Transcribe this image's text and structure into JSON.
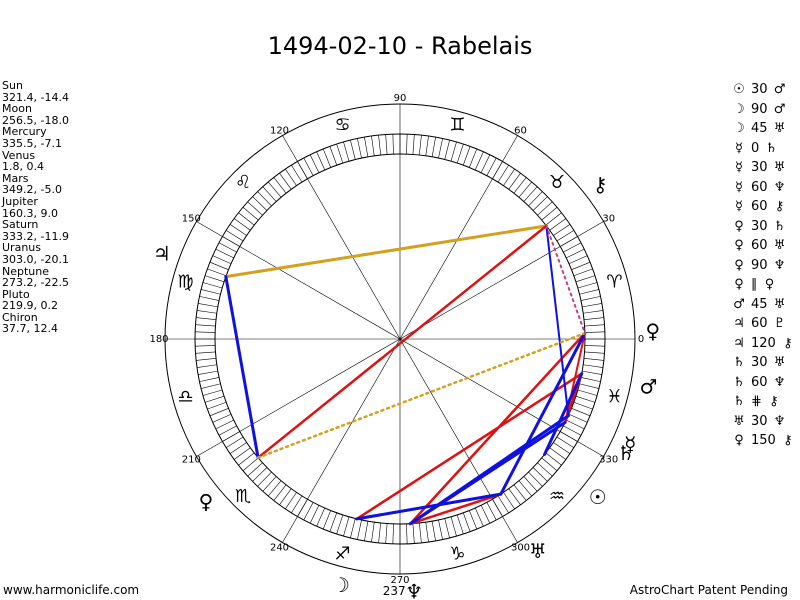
{
  "title": "1494-02-10 - Rabelais",
  "planets": [
    {
      "name": "Sun",
      "coords": "321.4, -14.4"
    },
    {
      "name": "Moon",
      "coords": "256.5, -18.0"
    },
    {
      "name": "Mercury",
      "coords": "335.5, -7.1"
    },
    {
      "name": "Venus",
      "coords": "1.8, 0.4"
    },
    {
      "name": "Mars",
      "coords": "349.2, -5.0"
    },
    {
      "name": "Jupiter",
      "coords": "160.3, 9.0"
    },
    {
      "name": "Saturn",
      "coords": "333.2, -11.9"
    },
    {
      "name": "Uranus",
      "coords": "303.0, -20.1"
    },
    {
      "name": "Neptune",
      "coords": "273.2, -22.5"
    },
    {
      "name": "Pluto",
      "coords": "219.9, 0.2"
    },
    {
      "name": "Chiron",
      "coords": "37.7, 12.4"
    }
  ],
  "aspects": [
    {
      "p1": "☉",
      "angle": "30",
      "p2": "♂"
    },
    {
      "p1": "☽",
      "angle": "90",
      "p2": "♂"
    },
    {
      "p1": "☽",
      "angle": "45",
      "p2": "♅"
    },
    {
      "p1": "☿",
      "angle": "0",
      "p2": "♄"
    },
    {
      "p1": "☿",
      "angle": "30",
      "p2": "♅"
    },
    {
      "p1": "☿",
      "angle": "60",
      "p2": "♆"
    },
    {
      "p1": "☿",
      "angle": "60",
      "p2": "⚷"
    },
    {
      "p1": "♀",
      "angle": "30",
      "p2": "♄"
    },
    {
      "p1": "♀",
      "angle": "60",
      "p2": "♅"
    },
    {
      "p1": "♀",
      "angle": "90",
      "p2": "♆"
    },
    {
      "p1": "♀",
      "angle": "∥",
      "p2": "♀"
    },
    {
      "p1": "♂",
      "angle": "45",
      "p2": "♅"
    },
    {
      "p1": "♃",
      "angle": "60",
      "p2": "♇"
    },
    {
      "p1": "♃",
      "angle": "120",
      "p2": "⚷"
    },
    {
      "p1": "♄",
      "angle": "30",
      "p2": "♅"
    },
    {
      "p1": "♄",
      "angle": "60",
      "p2": "♆"
    },
    {
      "p1": "♄",
      "angle": "⋕",
      "p2": "⚷"
    },
    {
      "p1": "♅",
      "angle": "30",
      "p2": "♆"
    },
    {
      "p1": "♀",
      "angle": "150",
      "p2": "⚷"
    }
  ],
  "footer_left": "www.harmoniclife.com",
  "footer_right": "AstroChart Patent Pending",
  "chart_data": {
    "type": "zodiac-wheel",
    "degree_labels": [
      "0",
      "30",
      "60",
      "90",
      "120",
      "150",
      "180",
      "210",
      "240",
      "270",
      "300",
      "330"
    ],
    "signs": [
      {
        "glyph": "♈",
        "lon": 15
      },
      {
        "glyph": "♉",
        "lon": 45
      },
      {
        "glyph": "♊",
        "lon": 75
      },
      {
        "glyph": "♋",
        "lon": 105
      },
      {
        "glyph": "♌",
        "lon": 135
      },
      {
        "glyph": "♍",
        "lon": 165
      },
      {
        "glyph": "♎",
        "lon": 195
      },
      {
        "glyph": "♏",
        "lon": 225
      },
      {
        "glyph": "♐",
        "lon": 255
      },
      {
        "glyph": "♑",
        "lon": 285
      },
      {
        "glyph": "♒",
        "lon": 315
      },
      {
        "glyph": "♓",
        "lon": 345
      }
    ],
    "bodies": [
      {
        "key": "sun",
        "glyph": "☉",
        "lon": 321.4
      },
      {
        "key": "moon",
        "glyph": "☽",
        "lon": 256.5
      },
      {
        "key": "mercury",
        "glyph": "☿",
        "lon": 335.5
      },
      {
        "key": "venus",
        "glyph": "♀",
        "lon": 1.8
      },
      {
        "key": "mars",
        "glyph": "♂",
        "lon": 349.2
      },
      {
        "key": "jupiter",
        "glyph": "♃",
        "lon": 160.3
      },
      {
        "key": "saturn",
        "glyph": "♄",
        "lon": 333.2
      },
      {
        "key": "uranus",
        "glyph": "♅",
        "lon": 303.0
      },
      {
        "key": "neptune",
        "glyph": "♆",
        "lon": 273.2
      },
      {
        "key": "pluto",
        "glyph": "♀",
        "lon": 219.9
      },
      {
        "key": "chiron",
        "glyph": "⚷",
        "lon": 37.7
      }
    ],
    "extra_labels": [
      {
        "text": "237",
        "lon": 270.5
      }
    ],
    "aspect_lines": [
      {
        "a": "jupiter",
        "b": "chiron",
        "color": "#d4a020",
        "style": "solid",
        "width": 3
      },
      {
        "a": "chiron",
        "b": "pluto",
        "color": "#e01010",
        "style": "solid",
        "width": 2.5
      },
      {
        "a": "moon",
        "b": "mars",
        "color": "#e01010",
        "style": "solid",
        "width": 2.5
      },
      {
        "a": "moon",
        "b": "uranus",
        "color": "#e01010",
        "style": "solid",
        "width": 2.5
      },
      {
        "a": "uranus",
        "b": "neptune",
        "color": "#e01010",
        "style": "solid",
        "width": 2.5
      },
      {
        "a": "neptune",
        "b": "venus",
        "color": "#e01010",
        "style": "solid",
        "width": 2.5
      },
      {
        "a": "mars",
        "b": "saturn",
        "color": "#e01010",
        "style": "solid",
        "width": 2.5
      },
      {
        "a": "venus",
        "b": "saturn",
        "color": "#e01010",
        "style": "solid",
        "width": 2
      },
      {
        "a": "sun",
        "b": "mars",
        "color": "#1010e0",
        "style": "solid",
        "width": 3
      },
      {
        "a": "jupiter",
        "b": "pluto",
        "color": "#1010e0",
        "style": "solid",
        "width": 3
      },
      {
        "a": "moon",
        "b": "uranus",
        "color": "#1010e0",
        "style": "solid",
        "width": 3
      },
      {
        "a": "venus",
        "b": "uranus",
        "color": "#1010e0",
        "style": "solid",
        "width": 3
      },
      {
        "a": "mercury",
        "b": "neptune",
        "color": "#1010e0",
        "style": "solid",
        "width": 3
      },
      {
        "a": "saturn",
        "b": "neptune",
        "color": "#1010e0",
        "style": "solid",
        "width": 3
      },
      {
        "a": "mercury",
        "b": "chiron",
        "color": "#1010e0",
        "style": "solid",
        "width": 2
      },
      {
        "a": "pluto",
        "b": "venus",
        "color": "#d4a020",
        "style": "dotted",
        "width": 2.5
      },
      {
        "a": "chiron",
        "b": "venus",
        "color": "#c04080",
        "style": "dotted",
        "width": 2
      }
    ]
  }
}
